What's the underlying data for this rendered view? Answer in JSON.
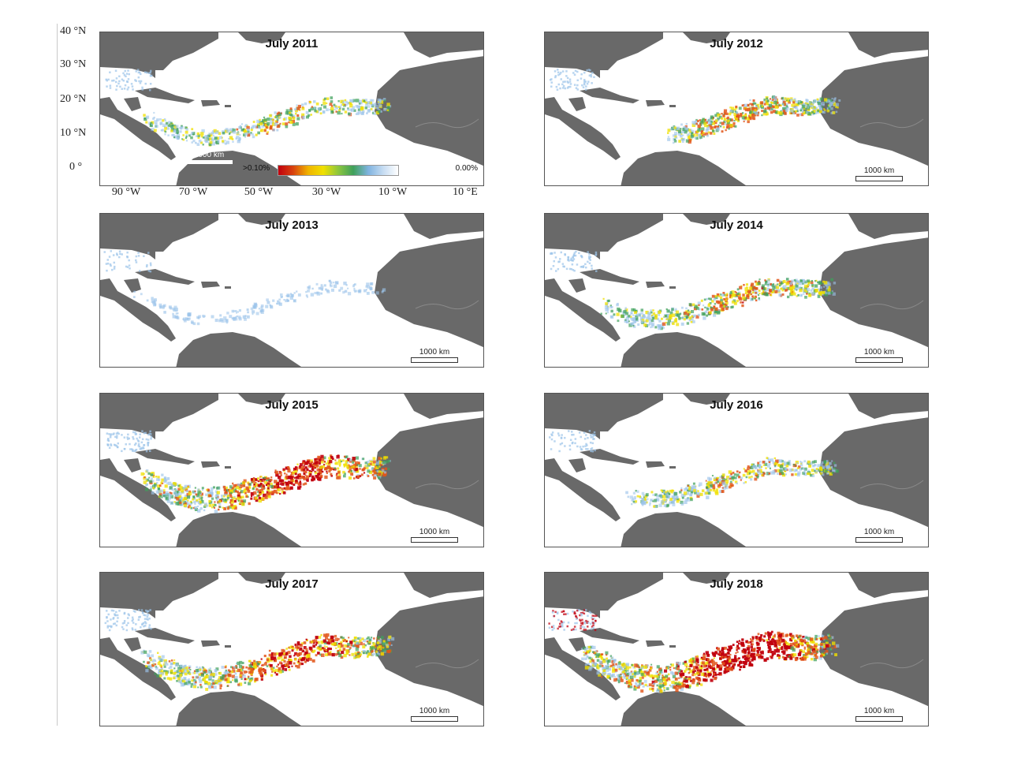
{
  "panels": [
    {
      "title": "July 2011",
      "intensity": 0.35,
      "west_extent": 0.05
    },
    {
      "title": "July 2012",
      "intensity": 0.45,
      "west_extent": 0.35
    },
    {
      "title": "July 2013",
      "intensity": 0.03,
      "west_extent": 0.0
    },
    {
      "title": "July 2014",
      "intensity": 0.5,
      "west_extent": 0.1
    },
    {
      "title": "July 2015",
      "intensity": 0.8,
      "west_extent": 0.05
    },
    {
      "title": "July 2016",
      "intensity": 0.35,
      "west_extent": 0.2
    },
    {
      "title": "July 2017",
      "intensity": 0.7,
      "west_extent": 0.05
    },
    {
      "title": "July 2018",
      "intensity": 1.0,
      "west_extent": 0.03
    }
  ],
  "scale_label": "1000 km",
  "legend": {
    "max_label": ">0.10%",
    "min_label": "0.00%"
  },
  "lat_labels": [
    "40 °N",
    "30 °N",
    "20 °N",
    "10 °N",
    "0 °"
  ],
  "lon_labels": [
    "90 °W",
    "70 °W",
    "50 °W",
    "30 °W",
    "10 °W",
    "10 °E"
  ],
  "colors": {
    "land": "#696969",
    "ocean": "#ffffff",
    "high": "#c1000e",
    "mid": "#f0e000",
    "low": "#3fa05a",
    "trace": "#9cc4ea"
  }
}
